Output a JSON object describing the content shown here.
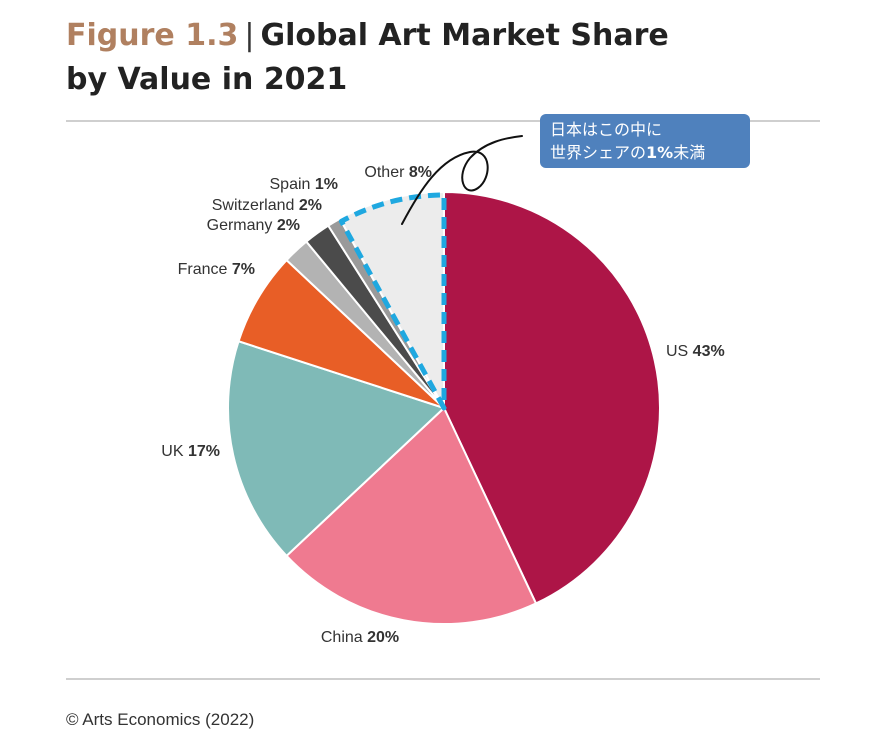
{
  "header": {
    "figure_label": "Figure 1.3",
    "separator": "|",
    "title_line1": "Global Art Market Share",
    "title_line2": "by Value in 2021"
  },
  "callout": {
    "line1": "日本はこの中に",
    "line2_pre": "世界シェアの",
    "line2_bold": "1%",
    "line2_post": "未満"
  },
  "footer": {
    "credit": "© Arts Economics (2022)"
  },
  "colors": {
    "US": "#ad1547",
    "China": "#ef7a90",
    "UK": "#7fbab7",
    "France": "#e85e26",
    "Germany": "#b3b3b3",
    "Switzerland": "#4b4b4b",
    "Spain": "#9a9a9a",
    "Other": "#ececec",
    "highlight": "#1fa8e0",
    "callout_bg": "#4f81bd"
  },
  "chart_data": {
    "type": "pie",
    "title": "Global Art Market Share by Value in 2021",
    "unit": "%",
    "slices": [
      {
        "name": "US",
        "value": 43,
        "value_label": "43%"
      },
      {
        "name": "China",
        "value": 20,
        "value_label": "20%"
      },
      {
        "name": "UK",
        "value": 17,
        "value_label": "17%"
      },
      {
        "name": "France",
        "value": 7,
        "value_label": "7%"
      },
      {
        "name": "Germany",
        "value": 2,
        "value_label": "2%"
      },
      {
        "name": "Switzerland",
        "value": 2,
        "value_label": "2%"
      },
      {
        "name": "Spain",
        "value": 1,
        "value_label": "1%"
      },
      {
        "name": "Other",
        "value": 8,
        "value_label": "8%"
      }
    ],
    "highlighted_slice": "Other"
  }
}
